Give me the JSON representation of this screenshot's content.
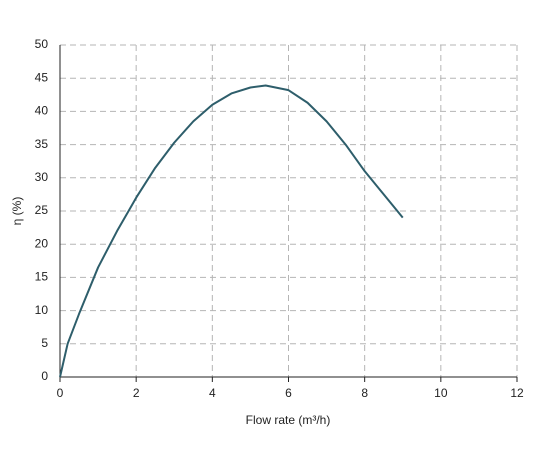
{
  "chart_data": {
    "type": "line",
    "x_label": "Flow rate (m³/h)",
    "y_label": "η (%)",
    "x": [
      0,
      0.2,
      0.5,
      1,
      1.5,
      2,
      2.5,
      3,
      3.5,
      4,
      4.5,
      5,
      5.4,
      6,
      6.5,
      7,
      7.5,
      8,
      8.5,
      9
    ],
    "series": [
      {
        "name": "η",
        "color": "#2e5e6b",
        "values": [
          0,
          5,
          9.5,
          16.5,
          22,
          27,
          31.5,
          35.3,
          38.5,
          41,
          42.7,
          43.6,
          43.9,
          43.2,
          41.3,
          38.5,
          35,
          31,
          27.5,
          24
        ]
      }
    ],
    "xlim": [
      0,
      12
    ],
    "xticks": [
      0,
      2,
      4,
      6,
      8,
      10,
      12
    ],
    "ylim": [
      0,
      50
    ],
    "yticks": [
      0,
      5,
      10,
      15,
      20,
      25,
      30,
      35,
      40,
      45,
      50
    ],
    "grid": true
  }
}
